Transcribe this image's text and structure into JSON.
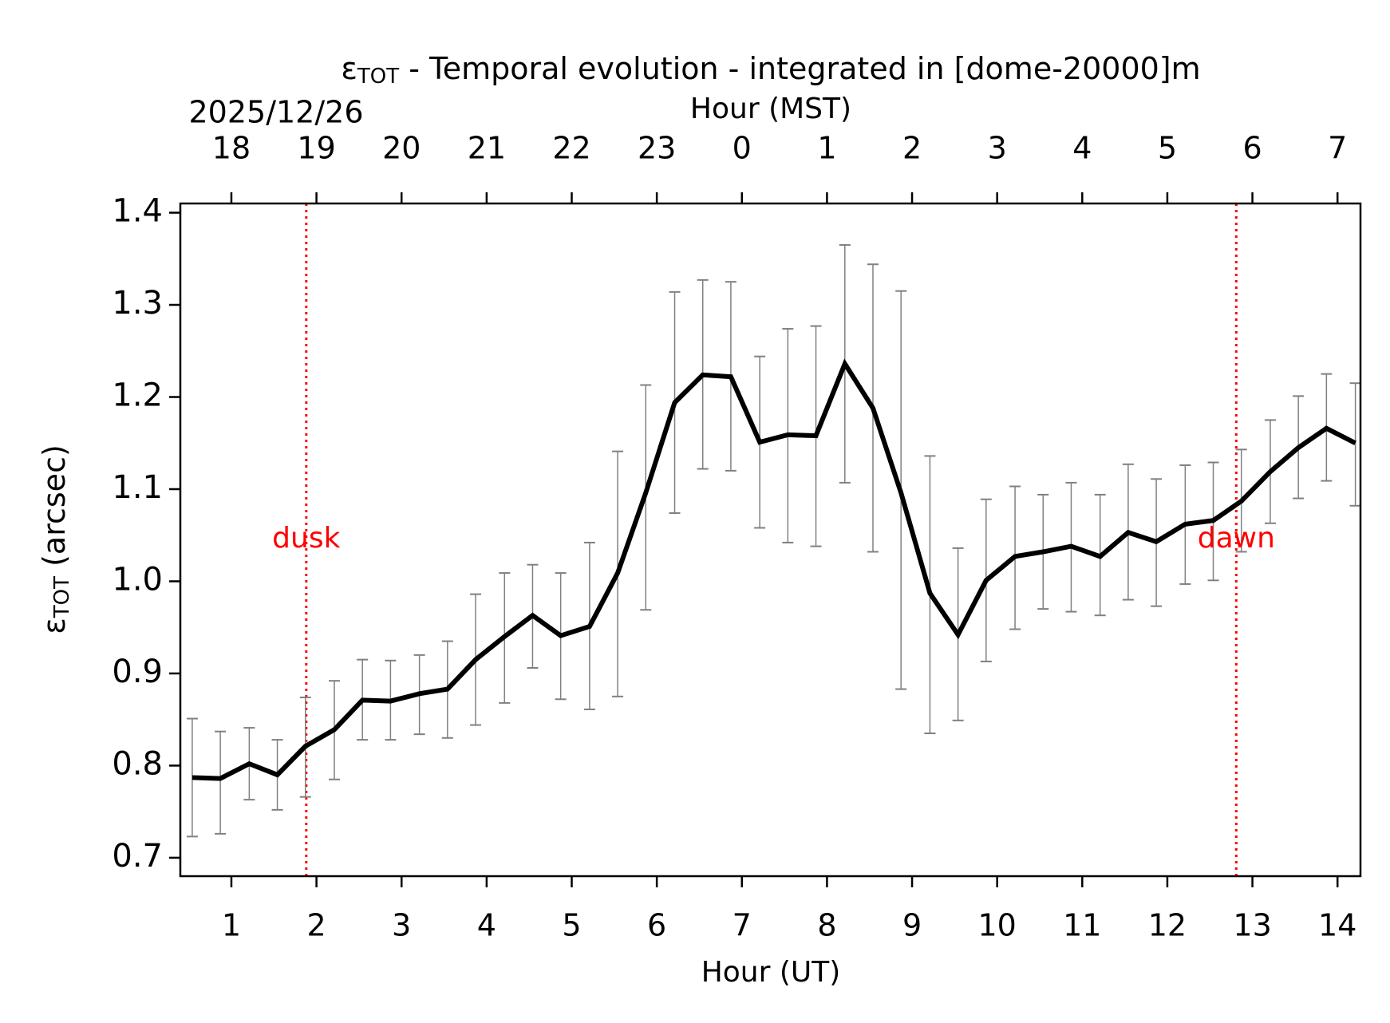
{
  "chart_data": {
    "type": "line",
    "title": [
      "ε",
      "TOT",
      " - Temporal evolution - integrated in [dome-20000]m"
    ],
    "xlabel": "Hour (UT)",
    "ylabel": [
      "ε",
      "TOT",
      " (arcsec)"
    ],
    "x2label": "Hour (MST)",
    "date_label": "2025/12/26",
    "xlim": [
      0.4,
      14.27
    ],
    "ylim": [
      0.68,
      1.41
    ],
    "xticks": [
      1,
      2,
      3,
      4,
      5,
      6,
      7,
      8,
      9,
      10,
      11,
      12,
      13,
      14
    ],
    "x2ticks": [
      {
        "value": 1,
        "label": "18"
      },
      {
        "value": 2,
        "label": "19"
      },
      {
        "value": 3,
        "label": "20"
      },
      {
        "value": 4,
        "label": "21"
      },
      {
        "value": 5,
        "label": "22"
      },
      {
        "value": 6,
        "label": "23"
      },
      {
        "value": 7,
        "label": "0"
      },
      {
        "value": 8,
        "label": "1"
      },
      {
        "value": 9,
        "label": "2"
      },
      {
        "value": 10,
        "label": "3"
      },
      {
        "value": 11,
        "label": "4"
      },
      {
        "value": 12,
        "label": "5"
      },
      {
        "value": 13,
        "label": "6"
      },
      {
        "value": 14,
        "label": "7"
      }
    ],
    "yticks": [
      0.7,
      0.8,
      0.9,
      {
        "value": 1.0,
        "label": "1.0"
      },
      1.1,
      1.2,
      1.3,
      1.4
    ],
    "grid": false,
    "x": [
      0.54,
      0.87,
      1.21,
      1.54,
      1.87,
      2.21,
      2.54,
      2.87,
      3.21,
      3.54,
      3.87,
      4.21,
      4.54,
      4.87,
      5.21,
      5.54,
      5.87,
      6.21,
      6.54,
      6.87,
      7.21,
      7.54,
      7.87,
      8.21,
      8.54,
      8.87,
      9.21,
      9.54,
      9.87,
      10.21,
      10.54,
      10.87,
      11.21,
      11.54,
      11.87,
      12.21,
      12.54,
      12.87,
      13.21,
      13.54,
      13.87,
      14.21
    ],
    "series": [
      {
        "color": "#000000",
        "error_color": "#808080",
        "values": [
          0.787,
          0.786,
          0.802,
          0.79,
          0.821,
          0.839,
          0.871,
          0.87,
          0.878,
          0.883,
          0.915,
          0.94,
          0.963,
          0.941,
          0.951,
          1.009,
          1.096,
          1.194,
          1.224,
          1.222,
          1.151,
          1.159,
          1.158,
          1.236,
          1.188,
          1.096,
          0.987,
          0.942,
          1.001,
          1.027,
          1.032,
          1.038,
          1.027,
          1.053,
          1.043,
          1.062,
          1.066,
          1.087,
          1.119,
          1.145,
          1.166,
          1.15
        ],
        "upper": [
          0.851,
          0.837,
          0.841,
          0.828,
          0.874,
          0.892,
          0.915,
          0.914,
          0.92,
          0.935,
          0.986,
          1.009,
          1.018,
          1.009,
          1.042,
          1.141,
          1.213,
          1.314,
          1.327,
          1.325,
          1.244,
          1.274,
          1.277,
          1.365,
          1.344,
          1.315,
          1.136,
          1.036,
          1.089,
          1.103,
          1.094,
          1.107,
          1.094,
          1.127,
          1.111,
          1.126,
          1.129,
          1.143,
          1.175,
          1.201,
          1.225,
          1.215
        ],
        "lower": [
          0.723,
          0.726,
          0.763,
          0.752,
          0.766,
          0.785,
          0.828,
          0.828,
          0.834,
          0.83,
          0.844,
          0.868,
          0.906,
          0.872,
          0.861,
          0.875,
          0.969,
          1.074,
          1.122,
          1.12,
          1.058,
          1.042,
          1.038,
          1.107,
          1.032,
          0.883,
          0.835,
          0.849,
          0.913,
          0.948,
          0.97,
          0.967,
          0.963,
          0.98,
          0.973,
          0.997,
          1.001,
          1.032,
          1.063,
          1.09,
          1.109,
          1.082
        ]
      }
    ],
    "annotations": [
      {
        "text": "dusk",
        "x": 1.88,
        "color": "#ff0000"
      },
      {
        "text": "dawn",
        "x": 12.81,
        "color": "#ff0000"
      }
    ]
  }
}
